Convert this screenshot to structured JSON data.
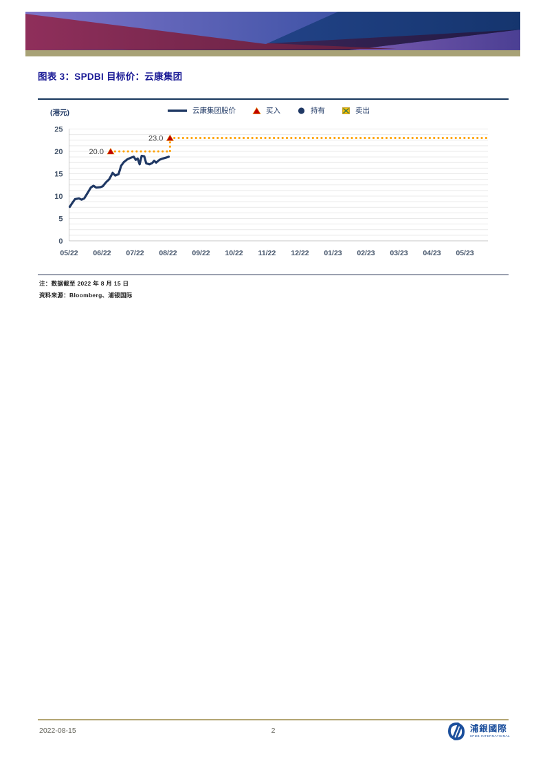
{
  "figure": {
    "title": "图表 3：SPDBI 目标价：云康集团",
    "note": "注：数据截至 2022 年 8 月 15 日",
    "source": "资料来源：Bloomberg、浦银国际"
  },
  "footer": {
    "date": "2022-08-15",
    "page_number": "2",
    "logo_cn": "浦銀國際",
    "logo_en": "SPDB INTERNATIONAL"
  },
  "colors": {
    "price_line": "#1F3864",
    "target_dotted": "#FFA200",
    "buy_marker": "#C00000",
    "hold_marker": "#1F3864",
    "sell_marker_bg": "#FFC000",
    "sell_marker_x": "#4E7F45",
    "axis_text": "#44546A",
    "grid": "#E9E9E9",
    "axis_line": "#C6C6C6",
    "marker_label": "#404040"
  },
  "chart_data": {
    "type": "line",
    "title": "SPDBI 目标价：云康集团",
    "unit_label": "(港元)",
    "legend": [
      {
        "label": "云康集团股价",
        "marker": "line"
      },
      {
        "label": "买入",
        "marker": "triangle"
      },
      {
        "label": "持有",
        "marker": "circle"
      },
      {
        "label": "卖出",
        "marker": "square-x"
      }
    ],
    "x_tick_labels": [
      "05/22",
      "06/22",
      "07/22",
      "08/22",
      "09/22",
      "10/22",
      "11/22",
      "12/22",
      "01/23",
      "02/23",
      "03/23",
      "04/23",
      "05/23"
    ],
    "ylim": [
      0,
      25
    ],
    "y_ticks": [
      0,
      5,
      10,
      15,
      20,
      25
    ],
    "grid_step": 1.25,
    "grid": "on",
    "legend_position": "top",
    "price_series": {
      "name": "云康集团股价",
      "points": [
        [
          0.02,
          7.6
        ],
        [
          0.1,
          8.5
        ],
        [
          0.18,
          9.3
        ],
        [
          0.3,
          9.5
        ],
        [
          0.38,
          9.2
        ],
        [
          0.46,
          9.5
        ],
        [
          0.56,
          10.7
        ],
        [
          0.66,
          11.9
        ],
        [
          0.74,
          12.3
        ],
        [
          0.82,
          11.9
        ],
        [
          0.95,
          12.0
        ],
        [
          1.02,
          12.2
        ],
        [
          1.12,
          13.1
        ],
        [
          1.22,
          13.8
        ],
        [
          1.32,
          15.2
        ],
        [
          1.4,
          14.6
        ],
        [
          1.5,
          14.9
        ],
        [
          1.58,
          16.8
        ],
        [
          1.66,
          17.6
        ],
        [
          1.76,
          18.2
        ],
        [
          1.88,
          18.6
        ],
        [
          1.96,
          18.8
        ],
        [
          2.02,
          18.1
        ],
        [
          2.08,
          18.4
        ],
        [
          2.14,
          17.1
        ],
        [
          2.2,
          19.0
        ],
        [
          2.28,
          18.9
        ],
        [
          2.34,
          17.3
        ],
        [
          2.44,
          17.1
        ],
        [
          2.52,
          17.4
        ],
        [
          2.58,
          17.9
        ],
        [
          2.64,
          17.5
        ],
        [
          2.74,
          18.1
        ],
        [
          2.84,
          18.4
        ],
        [
          2.94,
          18.6
        ],
        [
          3.02,
          18.8
        ]
      ]
    },
    "target_series": {
      "name": "SPDBI 目标价",
      "segments": [
        {
          "x_from": 1.26,
          "x_to": 3.06,
          "value": 20.0
        },
        {
          "x_from": 3.06,
          "x_to": 12.65,
          "value": 23.0
        }
      ],
      "markers": [
        {
          "x": 1.26,
          "value": 20.0,
          "label": "20.0"
        },
        {
          "x": 3.06,
          "value": 23.0,
          "label": "23.0"
        }
      ]
    }
  }
}
